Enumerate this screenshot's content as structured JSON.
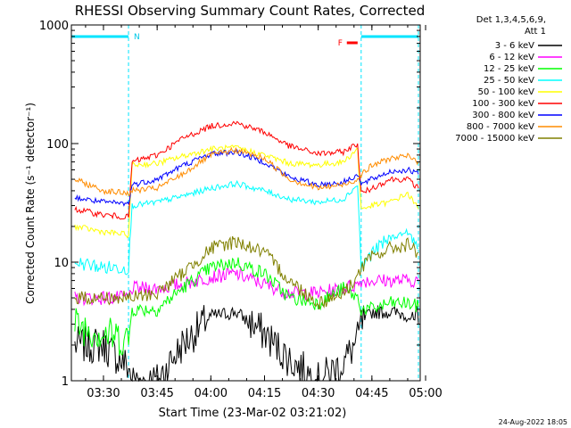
{
  "chart_data": {
    "type": "line",
    "title": "RHESSI Observing Summary Count Rates, Corrected",
    "xlabel": "Start Time (23-Mar-02 03:21:02)",
    "ylabel": "Corrected Count Rate (s⁻¹ detector⁻¹)",
    "yscale": "log",
    "ylim": [
      1,
      1000
    ],
    "xlim": [
      "03:21:02",
      "04:58:30"
    ],
    "xticks": [
      "03:30",
      "03:45",
      "04:00",
      "04:15",
      "04:30",
      "04:45",
      "05:00"
    ],
    "yticks": [
      "1",
      "10",
      "100",
      "1000"
    ],
    "grid": false,
    "legend_position": "right",
    "legend_title": [
      "Det 1,3,4,5,6,9,",
      "Att 1"
    ],
    "annotations": {
      "night": [
        {
          "start": "03:21",
          "end": "03:37",
          "label": "N"
        },
        {
          "start": "04:42",
          "end": "04:58",
          "label": ""
        }
      ],
      "flare": {
        "start": "04:37",
        "end": "04:42",
        "label": "F"
      }
    },
    "timestamp": "24-Aug-2022 18:05",
    "x": [
      "03:22",
      "03:30",
      "03:37",
      "03:38",
      "03:45",
      "03:52",
      "04:00",
      "04:07",
      "04:15",
      "04:22",
      "04:30",
      "04:37",
      "04:41",
      "04:42",
      "04:45",
      "04:50",
      "04:55",
      "04:58"
    ],
    "series": [
      {
        "name": "3 - 6 keV",
        "color": "#000000",
        "values": [
          2,
          2,
          1.3,
          1,
          1,
          2,
          3.5,
          3.8,
          2.5,
          1.5,
          1,
          1.4,
          2.2,
          3,
          3.8,
          3.8,
          3.6,
          3
        ]
      },
      {
        "name": "6 - 12 keV",
        "color": "#ff00ff",
        "values": [
          5,
          5,
          5,
          6,
          6,
          6.5,
          7.5,
          8,
          6.5,
          5.5,
          5.5,
          6,
          6.5,
          7,
          7,
          7,
          7,
          7
        ]
      },
      {
        "name": "12 - 25 keV",
        "color": "#00ff00",
        "values": [
          3,
          2.5,
          2.2,
          4,
          4,
          6,
          9,
          10,
          8,
          5,
          4.5,
          6,
          5,
          4,
          4,
          4.5,
          4.5,
          4.2
        ]
      },
      {
        "name": "25 - 50 keV",
        "color": "#00ffff",
        "values": [
          10,
          9,
          9,
          30,
          32,
          36,
          42,
          46,
          40,
          34,
          32,
          34,
          45,
          9,
          12,
          16,
          18,
          13
        ]
      },
      {
        "name": "50 - 100 keV",
        "color": "#ffff00",
        "values": [
          20,
          18,
          17,
          66,
          68,
          78,
          90,
          92,
          80,
          68,
          66,
          70,
          90,
          28,
          30,
          32,
          38,
          28
        ]
      },
      {
        "name": "100 - 300 keV",
        "color": "#ff0000",
        "values": [
          28,
          25,
          24,
          70,
          80,
          110,
          140,
          150,
          125,
          95,
          82,
          85,
          100,
          38,
          42,
          50,
          50,
          42
        ]
      },
      {
        "name": "300 - 800 keV",
        "color": "#0000ff",
        "values": [
          35,
          32,
          31,
          45,
          50,
          65,
          82,
          85,
          70,
          52,
          45,
          47,
          55,
          45,
          50,
          58,
          60,
          55
        ]
      },
      {
        "name": "800 - 7000 keV",
        "color": "#ff8c00",
        "values": [
          50,
          40,
          38,
          40,
          42,
          55,
          80,
          88,
          75,
          50,
          42,
          45,
          50,
          55,
          65,
          75,
          78,
          70
        ]
      },
      {
        "name": "7000 - 15000 keV",
        "color": "#808000",
        "values": [
          5,
          5,
          5,
          5,
          5.5,
          8,
          13,
          15,
          12,
          7,
          4.5,
          5.5,
          7.5,
          9,
          11,
          13,
          14,
          12
        ]
      }
    ]
  }
}
